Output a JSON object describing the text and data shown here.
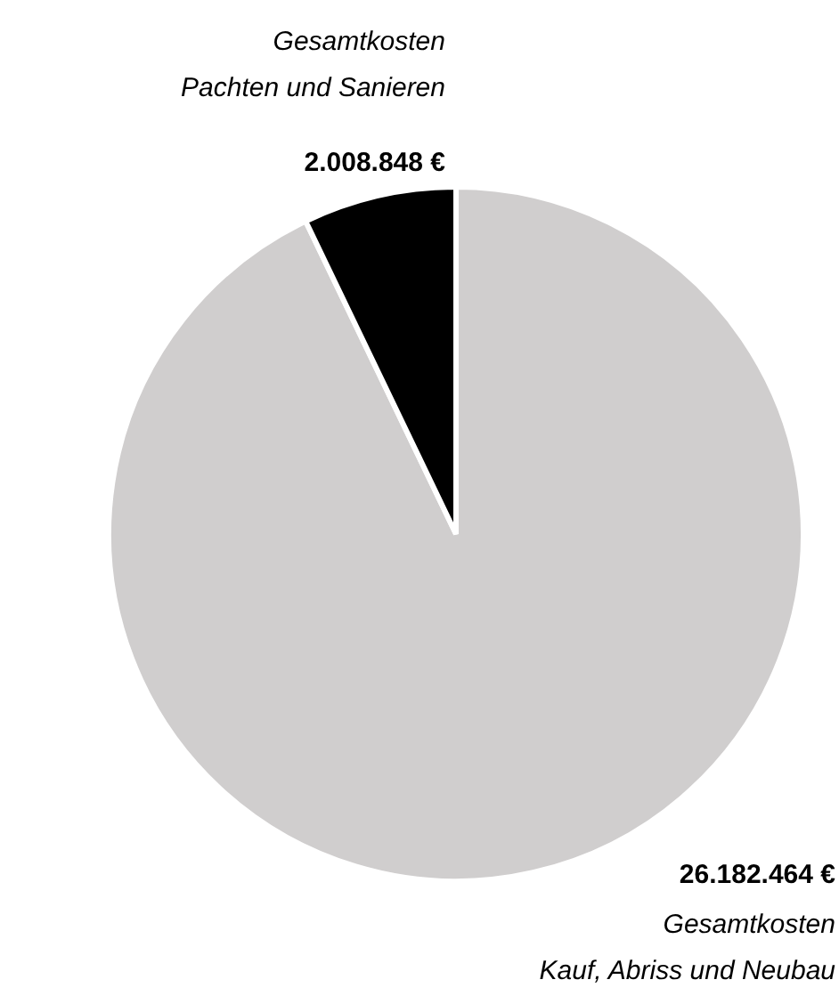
{
  "chart_data": {
    "type": "pie",
    "categories": [
      "Gesamtkosten\nKauf, Abriss und Neubau",
      "Gesamtkosten\nPachten und Sanieren"
    ],
    "values": [
      26182464,
      2008848
    ],
    "value_labels": [
      "26.182.464 €",
      "2.008.848 €"
    ],
    "colors": [
      "#d0cece",
      "#000000"
    ]
  }
}
